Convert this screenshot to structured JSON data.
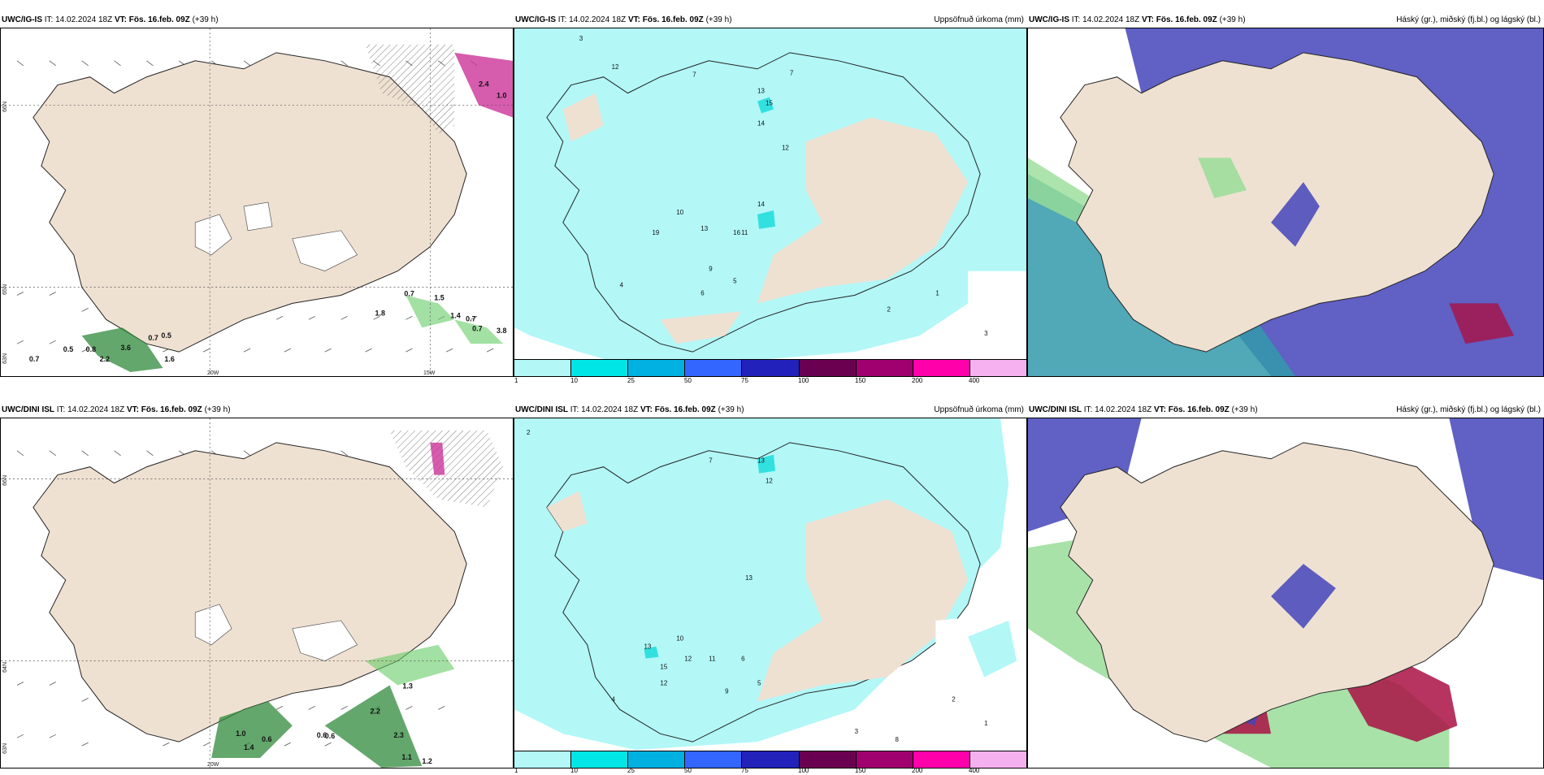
{
  "panels": {
    "p1": {
      "model": "UWC/IG-IS",
      "it_label": "IT:",
      "it_value": "14.02.2024 18Z",
      "vt_label": "VT:",
      "vt_value": "Fös. 16.feb. 09Z",
      "lead": "(+39 h)",
      "right_title": ""
    },
    "p2": {
      "model": "UWC/IG-IS",
      "it_label": "IT:",
      "it_value": "14.02.2024 18Z",
      "vt_label": "VT:",
      "vt_value": "Fös. 16.feb. 09Z",
      "lead": "(+39 h)",
      "right_title": "Uppsöfnuð úrkoma (mm)"
    },
    "p3": {
      "model": "UWC/IG-IS",
      "it_label": "IT:",
      "it_value": "14.02.2024 18Z",
      "vt_label": "VT:",
      "vt_value": "Fös. 16.feb. 09Z",
      "lead": "(+39 h)",
      "right_title": "Háský (gr.), miðský (fj.bl.) og lágský (bl.)"
    },
    "p4": {
      "model": "UWC/DINI ISL",
      "it_label": "IT:",
      "it_value": "14.02.2024 18Z",
      "vt_label": "VT:",
      "vt_value": "Fös. 16.feb. 09Z",
      "lead": "(+39 h)",
      "right_title": ""
    },
    "p5": {
      "model": "UWC/DINI ISL",
      "it_label": "IT:",
      "it_value": "14.02.2024 18Z",
      "vt_label": "VT:",
      "vt_value": "Fös. 16.feb. 09Z",
      "lead": "(+39 h)",
      "right_title": "Uppsöfnuð úrkoma (mm)"
    },
    "p6": {
      "model": "UWC/DINI ISL",
      "it_label": "IT:",
      "it_value": "14.02.2024 18Z",
      "vt_label": "VT:",
      "vt_value": "Fös. 16.feb. 09Z",
      "lead": "(+39 h)",
      "right_title": "Háský (gr.), miðský (fj.bl.) og lágský (bl.)"
    }
  },
  "axis_labels": {
    "lat66": "66N",
    "lat65": "65N",
    "lat64": "64N",
    "lat63": "63N",
    "lon20": "20W",
    "lon15": "15W"
  },
  "legend": {
    "ticks": [
      "1",
      "10",
      "25",
      "50",
      "75",
      "100",
      "150",
      "200",
      "400"
    ],
    "colors": [
      "#b3f7f7",
      "#00e6e6",
      "#00b0e0",
      "#3366ff",
      "#2222bb",
      "#6a0050",
      "#a0006f",
      "#ff00aa",
      "#f5b0f0"
    ]
  },
  "map_colors": {
    "land": "#efe1d2",
    "precip": "#b3f7f7",
    "precip_strong": "#33e0e0",
    "cloud_high": "#99dd99",
    "cloud_mid": "#3399aa",
    "cloud_low": "#4444bb",
    "cloud_red": "#aa1144"
  },
  "precip_values_top": [
    "3",
    "12",
    "7",
    "7",
    "13",
    "15",
    "14",
    "12",
    "19",
    "13",
    "16",
    "14",
    "11",
    "10",
    "9",
    "5",
    "6",
    "4",
    "2",
    "1",
    "3"
  ],
  "precip_values_bottom": [
    "2",
    "10",
    "7",
    "13",
    "12",
    "13",
    "12",
    "15",
    "12",
    "10",
    "11",
    "13",
    "9",
    "6",
    "5",
    "4",
    "3",
    "2",
    "1",
    "8"
  ],
  "p1_values": [
    "0.7",
    "0.5",
    "0.8",
    "2.2",
    "3.6",
    "0.7",
    "0.5",
    "1.6",
    "1.8",
    "0.7",
    "1.5",
    "1.4",
    "0.7",
    "0.7",
    "3.8",
    "2.4",
    "1.0"
  ],
  "p4_values": [
    "1.0",
    "0.6",
    "1.4",
    "0.6",
    "0.6",
    "2.2",
    "2.3",
    "1.1",
    "1.2",
    "1.3"
  ]
}
